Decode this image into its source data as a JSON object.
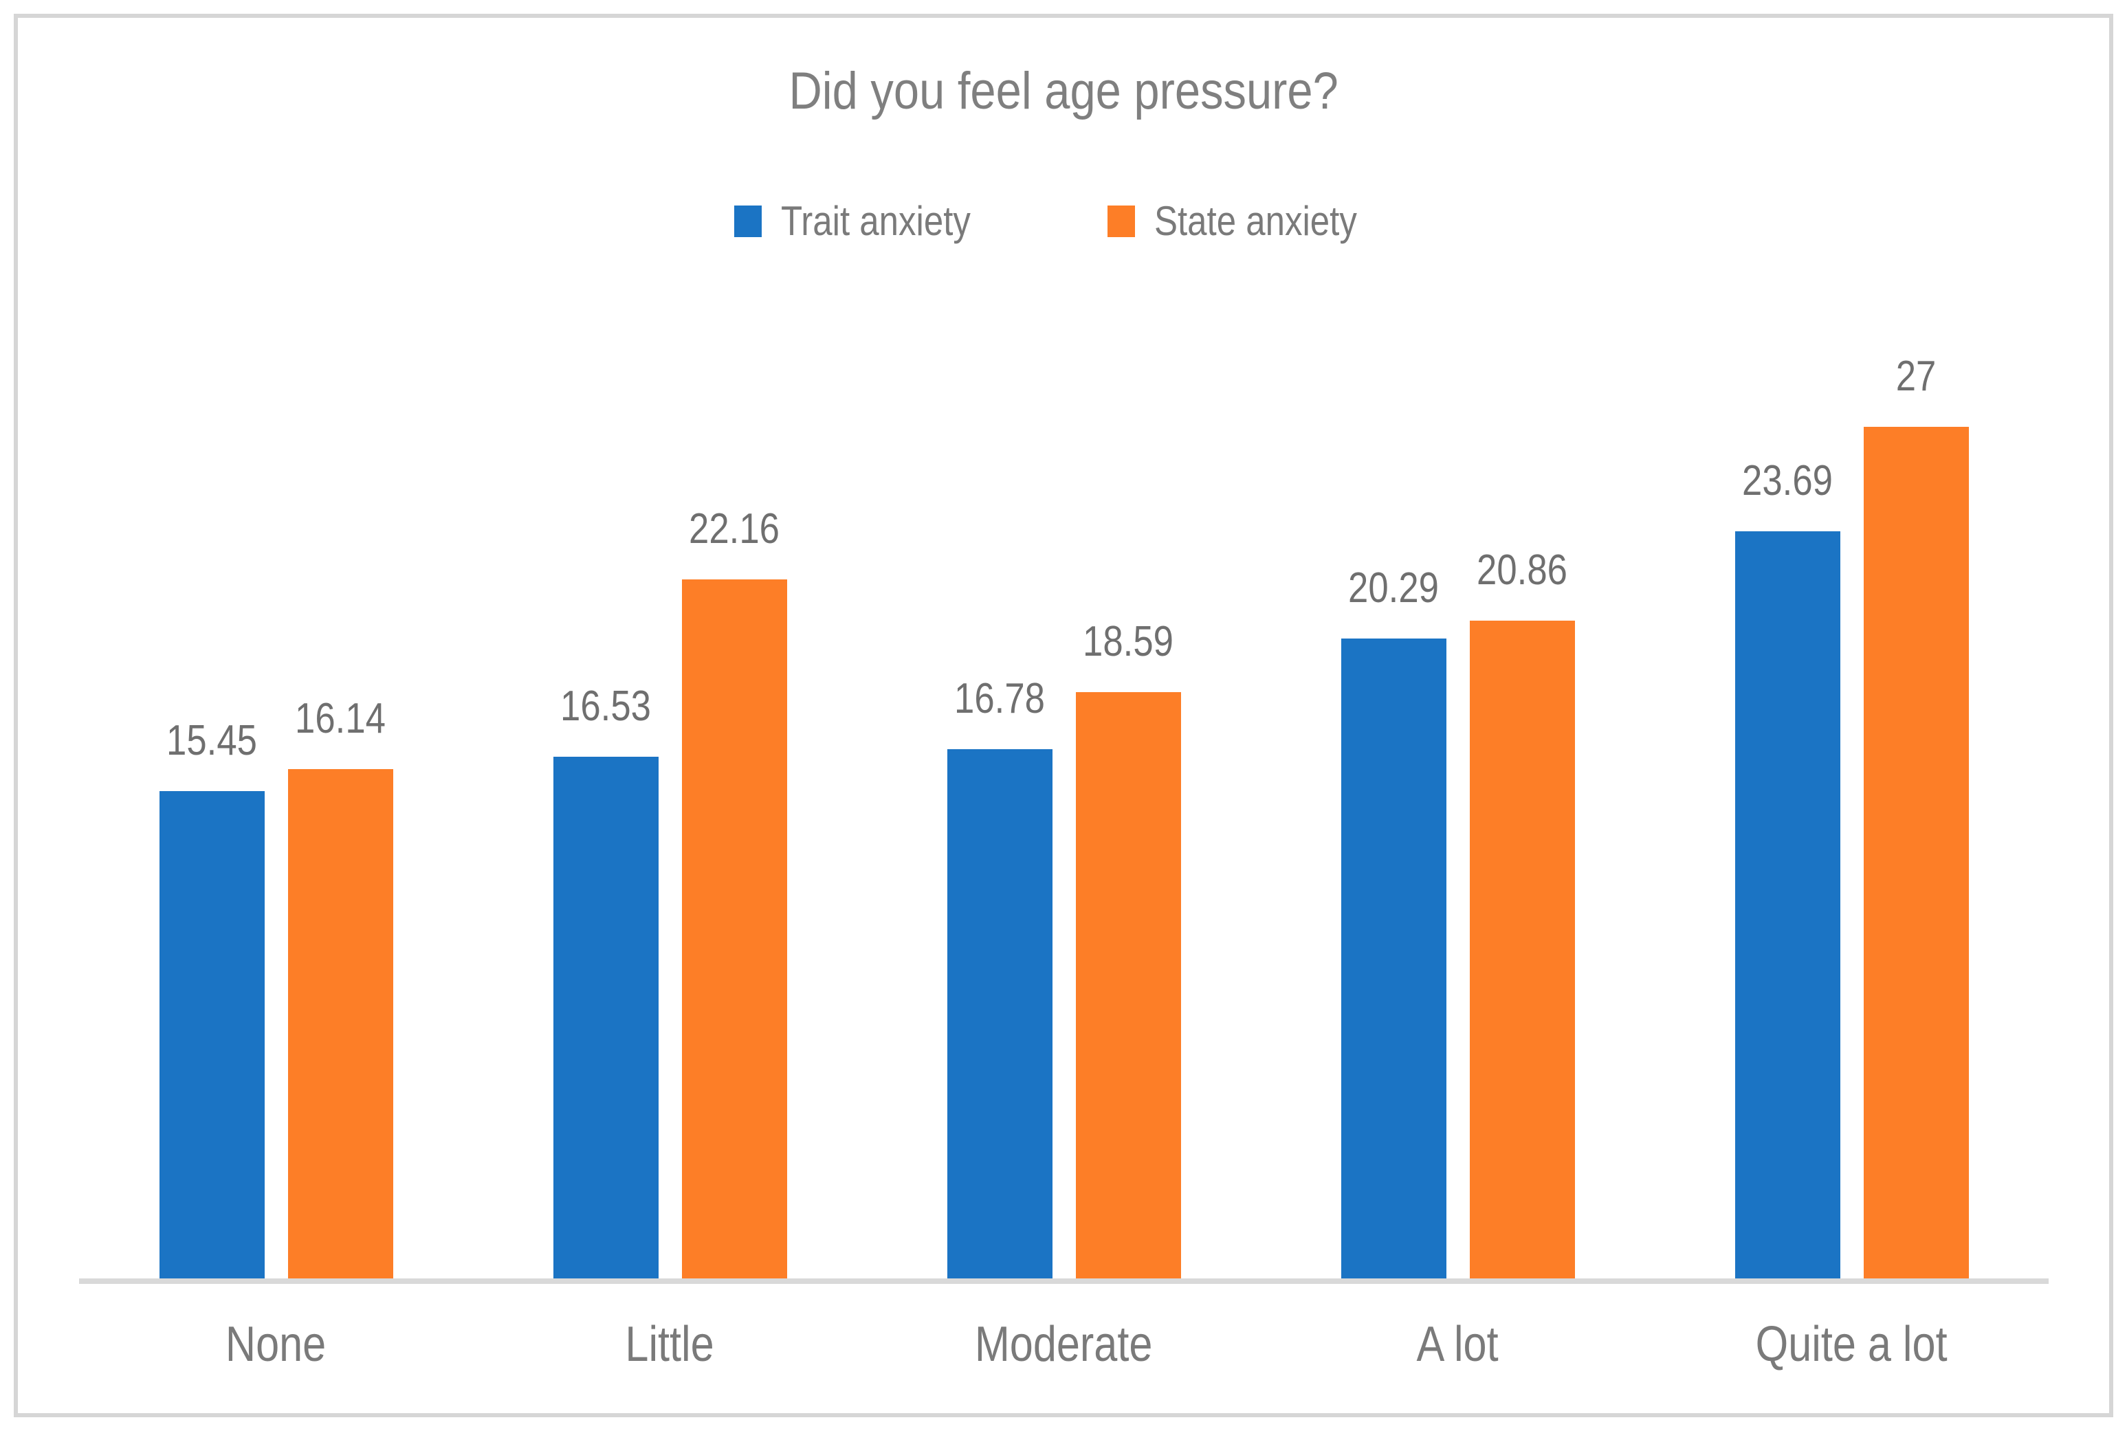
{
  "chart_data": {
    "type": "bar",
    "title": "Did you feel age pressure?",
    "categories": [
      "None",
      "Little",
      "Moderate",
      "A lot",
      "Quite a lot"
    ],
    "series": [
      {
        "name": "Trait anxiety",
        "color": "#1B74C4",
        "values": [
          15.45,
          16.53,
          16.78,
          20.29,
          23.69
        ]
      },
      {
        "name": "State anxiety",
        "color": "#FD7E27",
        "values": [
          16.14,
          22.16,
          18.59,
          20.86,
          27
        ]
      }
    ],
    "ylim": [
      0,
      30
    ],
    "xlabel": "",
    "ylabel": "",
    "grid": false,
    "y_axis_visible": false,
    "legend_position": "top",
    "data_labels": "outside-end",
    "axis_line_color": "#D9D9D9",
    "text_color": "#7A7A7A",
    "frame_border_color": "#D6D6D6"
  }
}
